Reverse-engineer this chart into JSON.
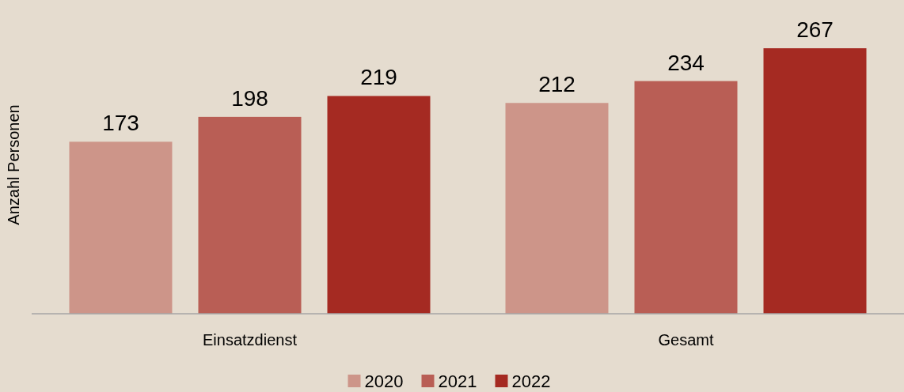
{
  "chart_data": {
    "type": "bar",
    "ylabel": "Anzahl Personen",
    "categories": [
      "Einsatzdienst",
      "Gesamt"
    ],
    "series": [
      {
        "name": "2020",
        "color": "#cd9589",
        "values": [
          173,
          212
        ]
      },
      {
        "name": "2021",
        "color": "#b95e55",
        "values": [
          198,
          234
        ]
      },
      {
        "name": "2022",
        "color": "#a52a22",
        "values": [
          219,
          267
        ]
      }
    ],
    "data_labels": true,
    "legend": "bottom",
    "grid": false
  }
}
